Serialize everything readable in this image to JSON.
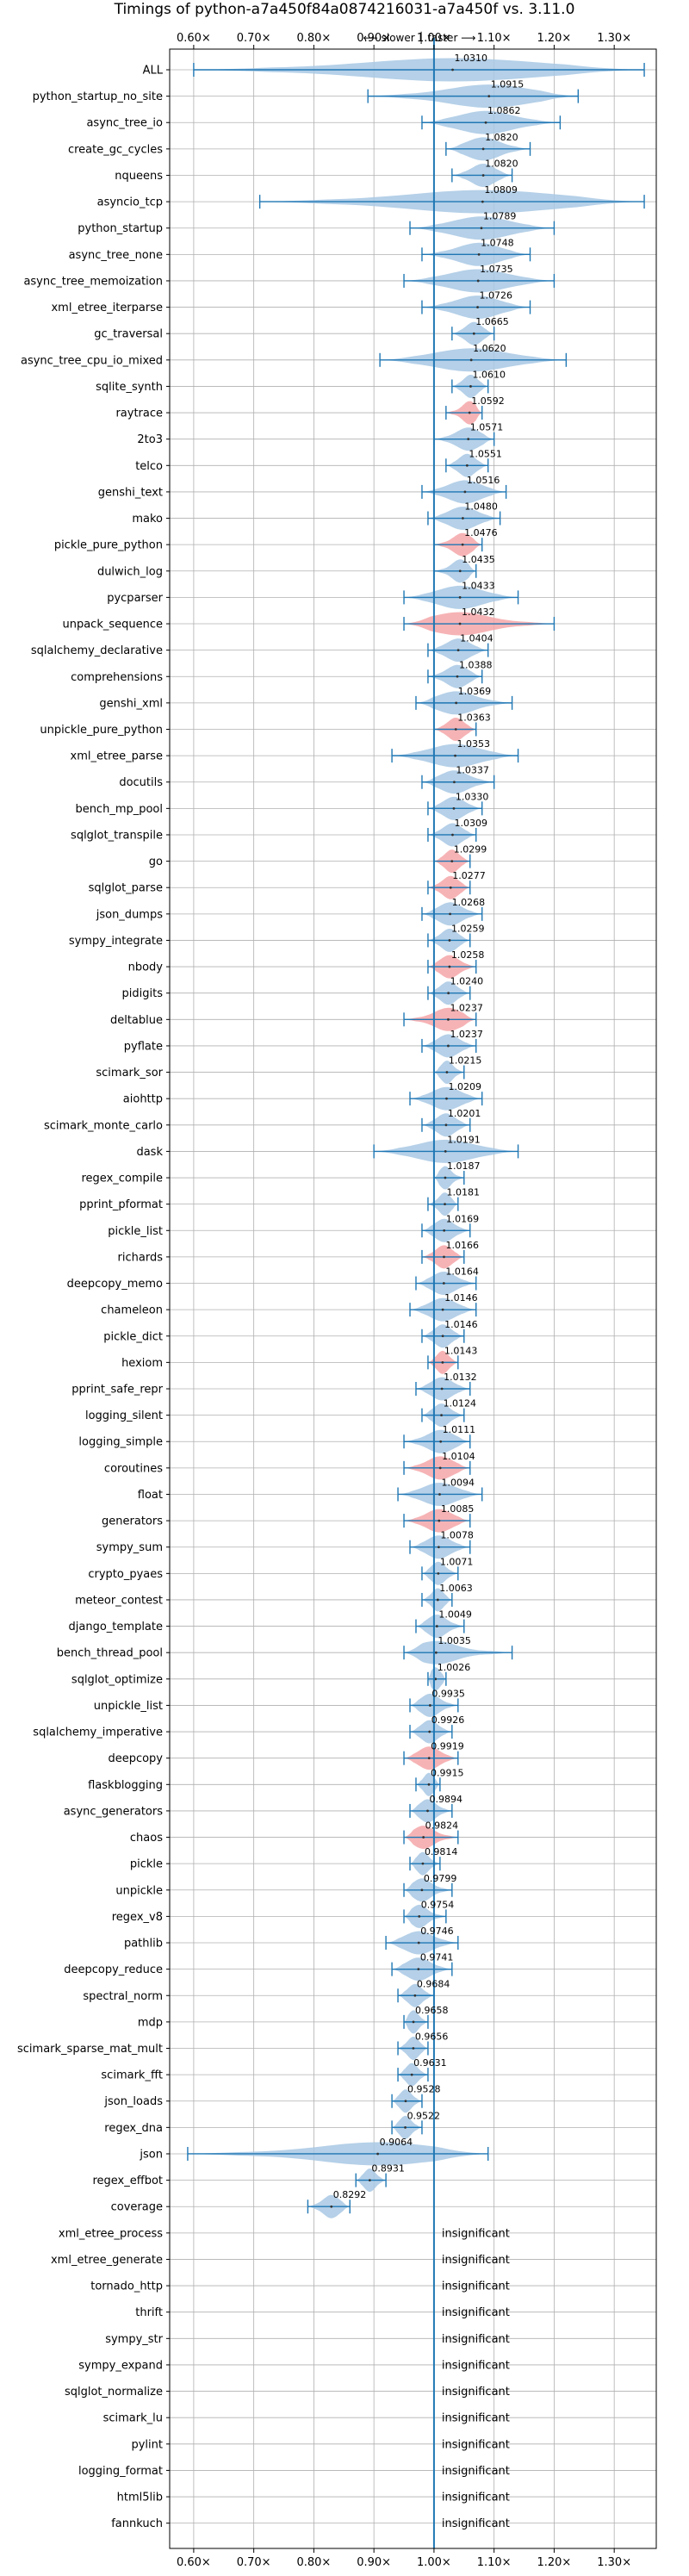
{
  "chart_data": {
    "type": "violin",
    "title": "Timings of python-a7a450f84a0874216031-a7a450f vs. 3.11.0",
    "subtitle": "⟵ slower │ faster ⟶",
    "xlim": [
      0.56,
      1.37
    ],
    "xticks": [
      0.6,
      0.7,
      0.8,
      0.9,
      1.0,
      1.1,
      1.2,
      1.3
    ],
    "xtick_labels": [
      "0.60×",
      "0.70×",
      "0.80×",
      "0.90×",
      "1.00×",
      "1.10×",
      "1.20×",
      "1.30×"
    ],
    "reference_line": 1.0,
    "grid": true,
    "colors": {
      "faster": "#a8c8e4",
      "slower": "#f4a6a8",
      "line": "#1f77b4"
    },
    "insignificant_text": "insignificant",
    "benchmarks": [
      {
        "name": "ALL",
        "value": 1.031,
        "label": "1.0310",
        "min": 0.6,
        "max": 1.35,
        "slower": false,
        "insignificant": false
      },
      {
        "name": "python_startup_no_site",
        "value": 1.0915,
        "label": "1.0915",
        "min": 0.89,
        "max": 1.24,
        "slower": false,
        "insignificant": false
      },
      {
        "name": "async_tree_io",
        "value": 1.0862,
        "label": "1.0862",
        "min": 0.98,
        "max": 1.21,
        "slower": false,
        "insignificant": false
      },
      {
        "name": "create_gc_cycles",
        "value": 1.082,
        "label": "1.0820",
        "min": 1.02,
        "max": 1.16,
        "slower": false,
        "insignificant": false
      },
      {
        "name": "nqueens",
        "value": 1.082,
        "label": "1.0820",
        "min": 1.03,
        "max": 1.13,
        "slower": false,
        "insignificant": false
      },
      {
        "name": "asyncio_tcp",
        "value": 1.0809,
        "label": "1.0809",
        "min": 0.71,
        "max": 1.35,
        "slower": false,
        "insignificant": false
      },
      {
        "name": "python_startup",
        "value": 1.0789,
        "label": "1.0789",
        "min": 0.96,
        "max": 1.2,
        "slower": false,
        "insignificant": false
      },
      {
        "name": "async_tree_none",
        "value": 1.0748,
        "label": "1.0748",
        "min": 0.98,
        "max": 1.16,
        "slower": false,
        "insignificant": false
      },
      {
        "name": "async_tree_memoization",
        "value": 1.0735,
        "label": "1.0735",
        "min": 0.95,
        "max": 1.2,
        "slower": false,
        "insignificant": false
      },
      {
        "name": "xml_etree_iterparse",
        "value": 1.0726,
        "label": "1.0726",
        "min": 0.98,
        "max": 1.16,
        "slower": false,
        "insignificant": false
      },
      {
        "name": "gc_traversal",
        "value": 1.0665,
        "label": "1.0665",
        "min": 1.03,
        "max": 1.1,
        "slower": false,
        "insignificant": false
      },
      {
        "name": "async_tree_cpu_io_mixed",
        "value": 1.062,
        "label": "1.0620",
        "min": 0.91,
        "max": 1.22,
        "slower": false,
        "insignificant": false
      },
      {
        "name": "sqlite_synth",
        "value": 1.061,
        "label": "1.0610",
        "min": 1.03,
        "max": 1.09,
        "slower": false,
        "insignificant": false
      },
      {
        "name": "raytrace",
        "value": 1.0592,
        "label": "1.0592",
        "min": 1.02,
        "max": 1.08,
        "slower": true,
        "insignificant": false
      },
      {
        "name": "2to3",
        "value": 1.0571,
        "label": "1.0571",
        "min": 1.0,
        "max": 1.1,
        "slower": false,
        "insignificant": false
      },
      {
        "name": "telco",
        "value": 1.0551,
        "label": "1.0551",
        "min": 1.02,
        "max": 1.09,
        "slower": false,
        "insignificant": false
      },
      {
        "name": "genshi_text",
        "value": 1.0516,
        "label": "1.0516",
        "min": 0.98,
        "max": 1.12,
        "slower": false,
        "insignificant": false
      },
      {
        "name": "mako",
        "value": 1.048,
        "label": "1.0480",
        "min": 0.99,
        "max": 1.11,
        "slower": false,
        "insignificant": false
      },
      {
        "name": "pickle_pure_python",
        "value": 1.0476,
        "label": "1.0476",
        "min": 1.0,
        "max": 1.08,
        "slower": true,
        "insignificant": false
      },
      {
        "name": "dulwich_log",
        "value": 1.0435,
        "label": "1.0435",
        "min": 1.0,
        "max": 1.07,
        "slower": false,
        "insignificant": false
      },
      {
        "name": "pycparser",
        "value": 1.0433,
        "label": "1.0433",
        "min": 0.95,
        "max": 1.14,
        "slower": false,
        "insignificant": false
      },
      {
        "name": "unpack_sequence",
        "value": 1.0432,
        "label": "1.0432",
        "min": 0.95,
        "max": 1.2,
        "slower": true,
        "insignificant": false
      },
      {
        "name": "sqlalchemy_declarative",
        "value": 1.0404,
        "label": "1.0404",
        "min": 0.99,
        "max": 1.09,
        "slower": false,
        "insignificant": false
      },
      {
        "name": "comprehensions",
        "value": 1.0388,
        "label": "1.0388",
        "min": 0.99,
        "max": 1.08,
        "slower": false,
        "insignificant": false
      },
      {
        "name": "genshi_xml",
        "value": 1.0369,
        "label": "1.0369",
        "min": 0.97,
        "max": 1.13,
        "slower": false,
        "insignificant": false
      },
      {
        "name": "unpickle_pure_python",
        "value": 1.0363,
        "label": "1.0363",
        "min": 1.0,
        "max": 1.07,
        "slower": true,
        "insignificant": false
      },
      {
        "name": "xml_etree_parse",
        "value": 1.0353,
        "label": "1.0353",
        "min": 0.93,
        "max": 1.14,
        "slower": false,
        "insignificant": false
      },
      {
        "name": "docutils",
        "value": 1.0337,
        "label": "1.0337",
        "min": 0.98,
        "max": 1.1,
        "slower": false,
        "insignificant": false
      },
      {
        "name": "bench_mp_pool",
        "value": 1.033,
        "label": "1.0330",
        "min": 0.99,
        "max": 1.08,
        "slower": false,
        "insignificant": false
      },
      {
        "name": "sqlglot_transpile",
        "value": 1.0309,
        "label": "1.0309",
        "min": 0.99,
        "max": 1.07,
        "slower": false,
        "insignificant": false
      },
      {
        "name": "go",
        "value": 1.0299,
        "label": "1.0299",
        "min": 1.0,
        "max": 1.06,
        "slower": true,
        "insignificant": false
      },
      {
        "name": "sqlglot_parse",
        "value": 1.0277,
        "label": "1.0277",
        "min": 0.99,
        "max": 1.06,
        "slower": true,
        "insignificant": false
      },
      {
        "name": "json_dumps",
        "value": 1.0268,
        "label": "1.0268",
        "min": 0.98,
        "max": 1.08,
        "slower": false,
        "insignificant": false
      },
      {
        "name": "sympy_integrate",
        "value": 1.0259,
        "label": "1.0259",
        "min": 0.99,
        "max": 1.06,
        "slower": false,
        "insignificant": false
      },
      {
        "name": "nbody",
        "value": 1.0258,
        "label": "1.0258",
        "min": 0.99,
        "max": 1.07,
        "slower": true,
        "insignificant": false
      },
      {
        "name": "pidigits",
        "value": 1.024,
        "label": "1.0240",
        "min": 0.99,
        "max": 1.06,
        "slower": false,
        "insignificant": false
      },
      {
        "name": "deltablue",
        "value": 1.0237,
        "label": "1.0237",
        "min": 0.95,
        "max": 1.07,
        "slower": true,
        "insignificant": false
      },
      {
        "name": "pyflate",
        "value": 1.0237,
        "label": "1.0237",
        "min": 0.98,
        "max": 1.07,
        "slower": false,
        "insignificant": false
      },
      {
        "name": "scimark_sor",
        "value": 1.0215,
        "label": "1.0215",
        "min": 1.0,
        "max": 1.05,
        "slower": false,
        "insignificant": false
      },
      {
        "name": "aiohttp",
        "value": 1.0209,
        "label": "1.0209",
        "min": 0.96,
        "max": 1.08,
        "slower": false,
        "insignificant": false
      },
      {
        "name": "scimark_monte_carlo",
        "value": 1.0201,
        "label": "1.0201",
        "min": 0.98,
        "max": 1.06,
        "slower": false,
        "insignificant": false
      },
      {
        "name": "dask",
        "value": 1.0191,
        "label": "1.0191",
        "min": 0.9,
        "max": 1.14,
        "slower": false,
        "insignificant": false
      },
      {
        "name": "regex_compile",
        "value": 1.0187,
        "label": "1.0187",
        "min": 1.0,
        "max": 1.05,
        "slower": false,
        "insignificant": false
      },
      {
        "name": "pprint_pformat",
        "value": 1.0181,
        "label": "1.0181",
        "min": 0.99,
        "max": 1.04,
        "slower": false,
        "insignificant": false
      },
      {
        "name": "pickle_list",
        "value": 1.0169,
        "label": "1.0169",
        "min": 0.98,
        "max": 1.06,
        "slower": false,
        "insignificant": false
      },
      {
        "name": "richards",
        "value": 1.0166,
        "label": "1.0166",
        "min": 0.98,
        "max": 1.05,
        "slower": true,
        "insignificant": false
      },
      {
        "name": "deepcopy_memo",
        "value": 1.0164,
        "label": "1.0164",
        "min": 0.97,
        "max": 1.07,
        "slower": false,
        "insignificant": false
      },
      {
        "name": "chameleon",
        "value": 1.0146,
        "label": "1.0146",
        "min": 0.96,
        "max": 1.07,
        "slower": false,
        "insignificant": false
      },
      {
        "name": "pickle_dict",
        "value": 1.0146,
        "label": "1.0146",
        "min": 0.98,
        "max": 1.05,
        "slower": false,
        "insignificant": false
      },
      {
        "name": "hexiom",
        "value": 1.0143,
        "label": "1.0143",
        "min": 0.99,
        "max": 1.04,
        "slower": true,
        "insignificant": false
      },
      {
        "name": "pprint_safe_repr",
        "value": 1.0132,
        "label": "1.0132",
        "min": 0.97,
        "max": 1.06,
        "slower": false,
        "insignificant": false
      },
      {
        "name": "logging_silent",
        "value": 1.0124,
        "label": "1.0124",
        "min": 0.98,
        "max": 1.05,
        "slower": false,
        "insignificant": false
      },
      {
        "name": "logging_simple",
        "value": 1.0111,
        "label": "1.0111",
        "min": 0.95,
        "max": 1.06,
        "slower": false,
        "insignificant": false
      },
      {
        "name": "coroutines",
        "value": 1.0104,
        "label": "1.0104",
        "min": 0.95,
        "max": 1.06,
        "slower": true,
        "insignificant": false
      },
      {
        "name": "float",
        "value": 1.0094,
        "label": "1.0094",
        "min": 0.94,
        "max": 1.08,
        "slower": false,
        "insignificant": false
      },
      {
        "name": "generators",
        "value": 1.0085,
        "label": "1.0085",
        "min": 0.95,
        "max": 1.06,
        "slower": true,
        "insignificant": false
      },
      {
        "name": "sympy_sum",
        "value": 1.0078,
        "label": "1.0078",
        "min": 0.96,
        "max": 1.06,
        "slower": false,
        "insignificant": false
      },
      {
        "name": "crypto_pyaes",
        "value": 1.0071,
        "label": "1.0071",
        "min": 0.98,
        "max": 1.04,
        "slower": false,
        "insignificant": false
      },
      {
        "name": "meteor_contest",
        "value": 1.0063,
        "label": "1.0063",
        "min": 0.98,
        "max": 1.03,
        "slower": false,
        "insignificant": false
      },
      {
        "name": "django_template",
        "value": 1.0049,
        "label": "1.0049",
        "min": 0.97,
        "max": 1.05,
        "slower": false,
        "insignificant": false
      },
      {
        "name": "bench_thread_pool",
        "value": 1.0035,
        "label": "1.0035",
        "min": 0.95,
        "max": 1.13,
        "slower": false,
        "insignificant": false
      },
      {
        "name": "sqlglot_optimize",
        "value": 1.0026,
        "label": "1.0026",
        "min": 0.99,
        "max": 1.02,
        "slower": false,
        "insignificant": false
      },
      {
        "name": "unpickle_list",
        "value": 0.9935,
        "label": "0.9935",
        "min": 0.96,
        "max": 1.04,
        "slower": false,
        "insignificant": false
      },
      {
        "name": "sqlalchemy_imperative",
        "value": 0.9926,
        "label": "0.9926",
        "min": 0.96,
        "max": 1.03,
        "slower": false,
        "insignificant": false
      },
      {
        "name": "deepcopy",
        "value": 0.9919,
        "label": "0.9919",
        "min": 0.95,
        "max": 1.04,
        "slower": true,
        "insignificant": false
      },
      {
        "name": "flaskblogging",
        "value": 0.9915,
        "label": "0.9915",
        "min": 0.97,
        "max": 1.01,
        "slower": false,
        "insignificant": false
      },
      {
        "name": "async_generators",
        "value": 0.9894,
        "label": "0.9894",
        "min": 0.96,
        "max": 1.03,
        "slower": false,
        "insignificant": false
      },
      {
        "name": "chaos",
        "value": 0.9824,
        "label": "0.9824",
        "min": 0.95,
        "max": 1.04,
        "slower": true,
        "insignificant": false
      },
      {
        "name": "pickle",
        "value": 0.9814,
        "label": "0.9814",
        "min": 0.96,
        "max": 1.01,
        "slower": false,
        "insignificant": false
      },
      {
        "name": "unpickle",
        "value": 0.9799,
        "label": "0.9799",
        "min": 0.95,
        "max": 1.03,
        "slower": false,
        "insignificant": false
      },
      {
        "name": "regex_v8",
        "value": 0.9754,
        "label": "0.9754",
        "min": 0.95,
        "max": 1.02,
        "slower": false,
        "insignificant": false
      },
      {
        "name": "pathlib",
        "value": 0.9746,
        "label": "0.9746",
        "min": 0.92,
        "max": 1.04,
        "slower": false,
        "insignificant": false
      },
      {
        "name": "deepcopy_reduce",
        "value": 0.9741,
        "label": "0.9741",
        "min": 0.93,
        "max": 1.03,
        "slower": false,
        "insignificant": false
      },
      {
        "name": "spectral_norm",
        "value": 0.9684,
        "label": "0.9684",
        "min": 0.94,
        "max": 1.0,
        "slower": false,
        "insignificant": false
      },
      {
        "name": "mdp",
        "value": 0.9658,
        "label": "0.9658",
        "min": 0.95,
        "max": 0.99,
        "slower": false,
        "insignificant": false
      },
      {
        "name": "scimark_sparse_mat_mult",
        "value": 0.9656,
        "label": "0.9656",
        "min": 0.94,
        "max": 0.99,
        "slower": false,
        "insignificant": false
      },
      {
        "name": "scimark_fft",
        "value": 0.9631,
        "label": "0.9631",
        "min": 0.94,
        "max": 0.99,
        "slower": false,
        "insignificant": false
      },
      {
        "name": "json_loads",
        "value": 0.9528,
        "label": "0.9528",
        "min": 0.93,
        "max": 0.98,
        "slower": false,
        "insignificant": false
      },
      {
        "name": "regex_dna",
        "value": 0.9522,
        "label": "0.9522",
        "min": 0.93,
        "max": 0.98,
        "slower": false,
        "insignificant": false
      },
      {
        "name": "json",
        "value": 0.9064,
        "label": "0.9064",
        "min": 0.59,
        "max": 1.09,
        "slower": false,
        "insignificant": false
      },
      {
        "name": "regex_effbot",
        "value": 0.8931,
        "label": "0.8931",
        "min": 0.87,
        "max": 0.92,
        "slower": false,
        "insignificant": false
      },
      {
        "name": "coverage",
        "value": 0.8292,
        "label": "0.8292",
        "min": 0.79,
        "max": 0.86,
        "slower": false,
        "insignificant": false
      },
      {
        "name": "xml_etree_process",
        "insignificant": true
      },
      {
        "name": "xml_etree_generate",
        "insignificant": true
      },
      {
        "name": "tornado_http",
        "insignificant": true
      },
      {
        "name": "thrift",
        "insignificant": true
      },
      {
        "name": "sympy_str",
        "insignificant": true
      },
      {
        "name": "sympy_expand",
        "insignificant": true
      },
      {
        "name": "sqlglot_normalize",
        "insignificant": true
      },
      {
        "name": "scimark_lu",
        "insignificant": true
      },
      {
        "name": "pylint",
        "insignificant": true
      },
      {
        "name": "logging_format",
        "insignificant": true
      },
      {
        "name": "html5lib",
        "insignificant": true
      },
      {
        "name": "fannkuch",
        "insignificant": true
      }
    ]
  }
}
